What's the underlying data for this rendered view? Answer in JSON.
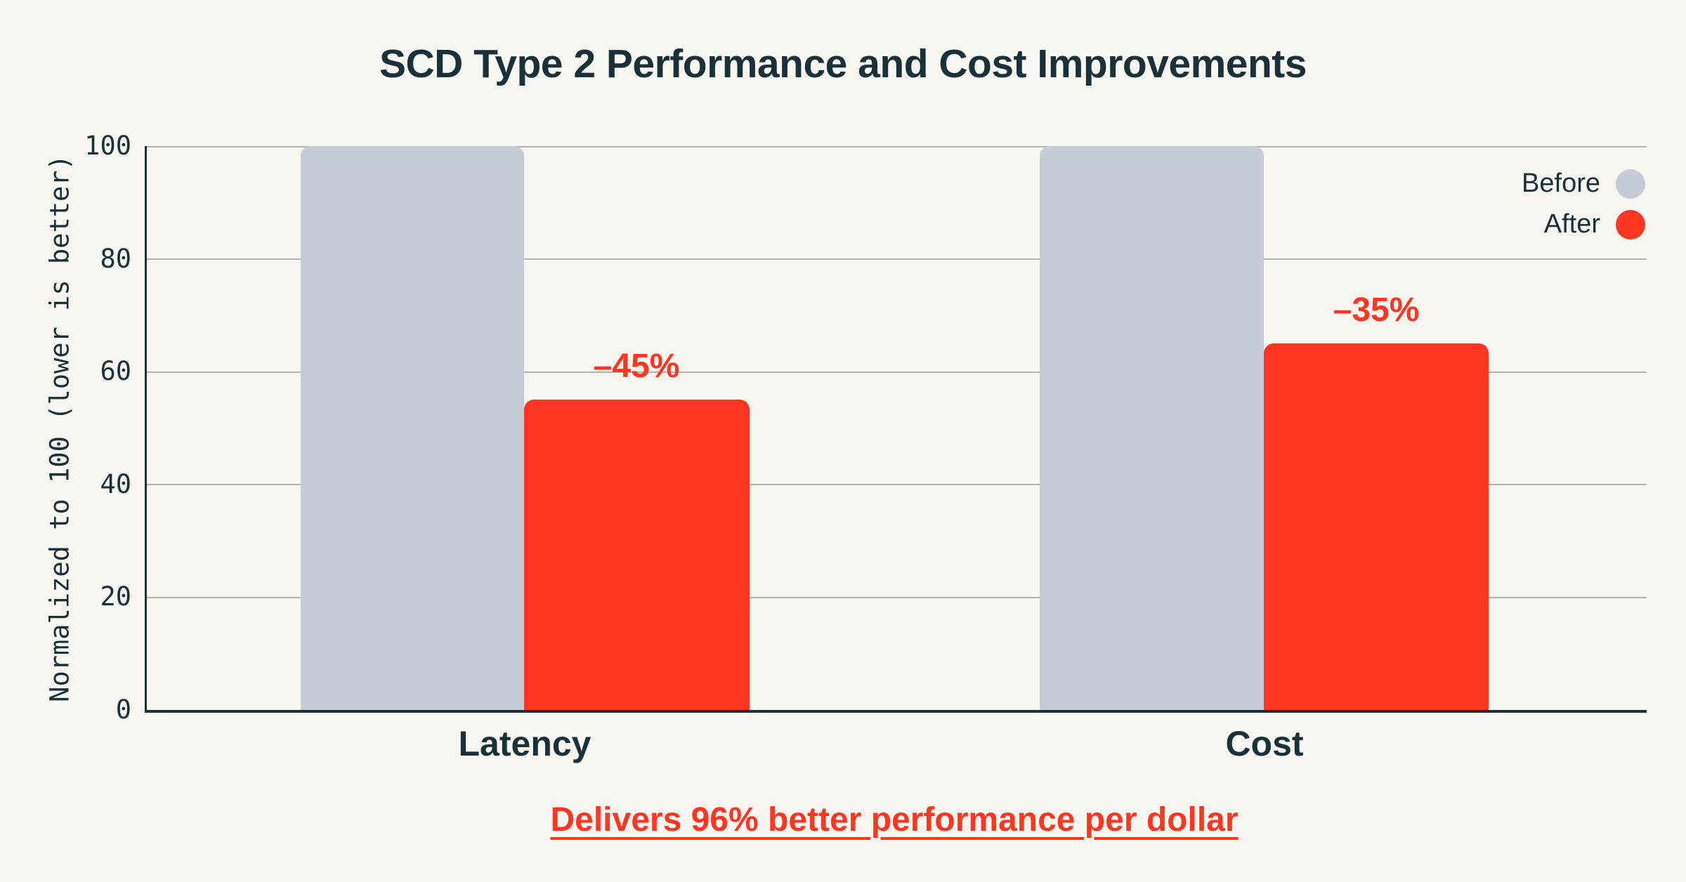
{
  "page": {
    "background": "#F7F5F0"
  },
  "title": "SCD Type 2 Performance and Cost Improvements",
  "chart_data": {
    "type": "bar",
    "title": "SCD Type 2 Performance and Cost Improvements",
    "categories": [
      "Latency",
      "Cost"
    ],
    "series": [
      {
        "name": "Before",
        "values": [
          100,
          100
        ],
        "color": "#C5CCD6"
      },
      {
        "name": "After",
        "values": [
          55,
          65
        ],
        "color": "#FF3621"
      }
    ],
    "annotations": [
      "–45%",
      "–35%"
    ],
    "xlabel": "",
    "ylabel": "Normalized to 100 (lower is better)",
    "yticks": [
      "100",
      "80",
      "60",
      "40",
      "20",
      "0"
    ],
    "ylim": [
      0,
      100
    ],
    "grid": "horizontal",
    "legend_position": "top-right",
    "caption": "Delivers 96% better performance per dollar"
  },
  "legend": {
    "items": [
      {
        "label": "Before",
        "color": "#C5CCD6"
      },
      {
        "label": "After",
        "color": "#FF3621"
      }
    ]
  },
  "caption": "Delivers 96% better performance per dollar",
  "colors": {
    "ink": "#1B3139",
    "red": "#FF3621",
    "before_gray": "#C5CCD6",
    "background": "#F7F5F0",
    "gridline": "#B2B2B2"
  }
}
